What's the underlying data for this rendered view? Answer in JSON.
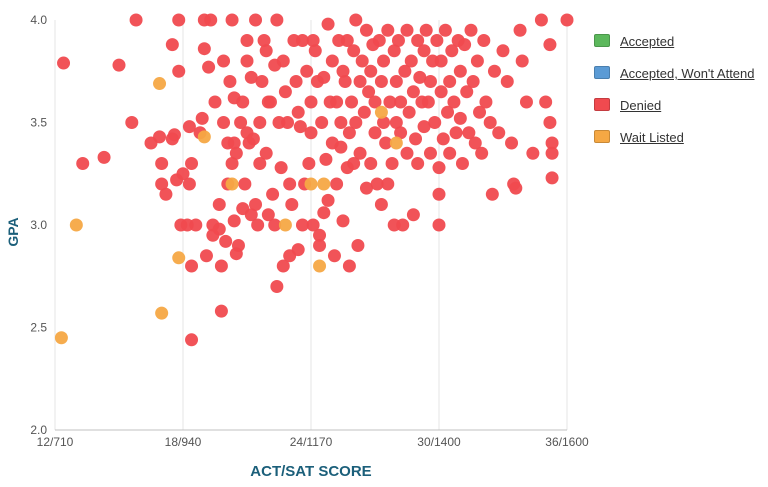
{
  "chart_data": {
    "type": "scatter",
    "title": "",
    "xlabel": "ACT/SAT SCORE",
    "ylabel": "GPA",
    "xlim": [
      12,
      36
    ],
    "ylim": [
      2.0,
      4.0
    ],
    "x_ticks": [
      {
        "value": 12,
        "label": "12/710"
      },
      {
        "value": 18,
        "label": "18/940"
      },
      {
        "value": 24,
        "label": "24/1170"
      },
      {
        "value": 30,
        "label": "30/1400"
      },
      {
        "value": 36,
        "label": "36/1600"
      }
    ],
    "y_ticks": [
      {
        "value": 2.0,
        "label": "2.0"
      },
      {
        "value": 2.5,
        "label": "2.5"
      },
      {
        "value": 3.0,
        "label": "3.0"
      },
      {
        "value": 3.5,
        "label": "3.5"
      },
      {
        "value": 4.0,
        "label": "4.0"
      }
    ],
    "grid": "vertical",
    "legend_position": "right",
    "series": [
      {
        "name": "Accepted",
        "color": "#5cb85c",
        "points": []
      },
      {
        "name": "Accepted, Won't Attend",
        "color": "#5b9bd5",
        "points": []
      },
      {
        "name": "Denied",
        "color": "#f04a4f",
        "points": [
          [
            12.4,
            3.79
          ],
          [
            13.3,
            3.3
          ],
          [
            14.3,
            3.33
          ],
          [
            15.0,
            3.78
          ],
          [
            15.6,
            3.5
          ],
          [
            15.8,
            4.0
          ],
          [
            16.5,
            3.4
          ],
          [
            16.9,
            3.43
          ],
          [
            17.0,
            3.3
          ],
          [
            17.0,
            3.2
          ],
          [
            17.2,
            3.15
          ],
          [
            17.5,
            3.42
          ],
          [
            17.5,
            3.88
          ],
          [
            17.6,
            3.44
          ],
          [
            17.7,
            3.22
          ],
          [
            17.8,
            4.0
          ],
          [
            17.8,
            3.75
          ],
          [
            17.9,
            3.0
          ],
          [
            18.0,
            3.25
          ],
          [
            18.2,
            3.0
          ],
          [
            18.3,
            3.48
          ],
          [
            18.4,
            3.3
          ],
          [
            18.3,
            3.2
          ],
          [
            18.4,
            2.8
          ],
          [
            18.4,
            2.44
          ],
          [
            18.6,
            3.0
          ],
          [
            18.8,
            3.45
          ],
          [
            18.9,
            3.52
          ],
          [
            19.0,
            3.86
          ],
          [
            19.0,
            4.0
          ],
          [
            19.2,
            3.77
          ],
          [
            19.1,
            2.85
          ],
          [
            19.3,
            4.0
          ],
          [
            19.4,
            3.0
          ],
          [
            19.4,
            2.95
          ],
          [
            19.5,
            3.6
          ],
          [
            19.7,
            3.1
          ],
          [
            19.7,
            2.98
          ],
          [
            19.8,
            2.8
          ],
          [
            19.8,
            2.58
          ],
          [
            19.9,
            3.5
          ],
          [
            19.9,
            3.8
          ],
          [
            20.0,
            2.92
          ],
          [
            20.1,
            3.2
          ],
          [
            20.1,
            3.4
          ],
          [
            20.2,
            3.7
          ],
          [
            20.3,
            4.0
          ],
          [
            20.4,
            3.62
          ],
          [
            20.3,
            3.3
          ],
          [
            20.4,
            3.4
          ],
          [
            20.4,
            3.02
          ],
          [
            20.5,
            3.35
          ],
          [
            20.5,
            2.86
          ],
          [
            20.6,
            2.9
          ],
          [
            20.7,
            3.5
          ],
          [
            20.8,
            3.6
          ],
          [
            20.8,
            3.08
          ],
          [
            20.9,
            3.2
          ],
          [
            21.0,
            3.9
          ],
          [
            21.0,
            3.8
          ],
          [
            21.0,
            3.45
          ],
          [
            21.1,
            3.4
          ],
          [
            21.2,
            3.72
          ],
          [
            21.2,
            3.05
          ],
          [
            21.3,
            3.42
          ],
          [
            21.4,
            4.0
          ],
          [
            21.4,
            3.1
          ],
          [
            21.5,
            3.0
          ],
          [
            21.6,
            3.5
          ],
          [
            21.6,
            3.3
          ],
          [
            21.7,
            3.7
          ],
          [
            21.8,
            3.9
          ],
          [
            21.9,
            3.85
          ],
          [
            21.9,
            3.35
          ],
          [
            22.0,
            3.6
          ],
          [
            22.0,
            3.05
          ],
          [
            22.1,
            3.6
          ],
          [
            22.2,
            3.15
          ],
          [
            22.3,
            3.78
          ],
          [
            22.3,
            3.0
          ],
          [
            22.4,
            4.0
          ],
          [
            22.4,
            2.7
          ],
          [
            22.5,
            3.5
          ],
          [
            22.6,
            3.28
          ],
          [
            22.7,
            3.8
          ],
          [
            22.7,
            2.8
          ],
          [
            22.8,
            3.65
          ],
          [
            22.9,
            3.5
          ],
          [
            23.0,
            2.85
          ],
          [
            23.0,
            3.2
          ],
          [
            23.1,
            3.1
          ],
          [
            23.2,
            3.9
          ],
          [
            23.3,
            3.7
          ],
          [
            23.4,
            3.55
          ],
          [
            23.4,
            2.88
          ],
          [
            23.5,
            3.48
          ],
          [
            23.6,
            3.9
          ],
          [
            23.6,
            3.0
          ],
          [
            23.7,
            3.2
          ],
          [
            23.8,
            3.75
          ],
          [
            23.9,
            3.3
          ],
          [
            24.0,
            3.6
          ],
          [
            24.0,
            3.45
          ],
          [
            24.1,
            3.9
          ],
          [
            24.1,
            3.0
          ],
          [
            24.2,
            3.85
          ],
          [
            24.3,
            3.7
          ],
          [
            24.4,
            2.95
          ],
          [
            24.4,
            2.9
          ],
          [
            24.5,
            3.5
          ],
          [
            24.6,
            3.72
          ],
          [
            24.6,
            3.06
          ],
          [
            24.7,
            3.32
          ],
          [
            24.8,
            3.98
          ],
          [
            24.8,
            3.12
          ],
          [
            24.9,
            3.6
          ],
          [
            25.0,
            3.8
          ],
          [
            25.0,
            3.4
          ],
          [
            25.1,
            2.85
          ],
          [
            25.2,
            3.2
          ],
          [
            25.2,
            3.6
          ],
          [
            25.3,
            3.9
          ],
          [
            25.4,
            3.5
          ],
          [
            25.4,
            3.38
          ],
          [
            25.5,
            3.75
          ],
          [
            25.5,
            3.02
          ],
          [
            25.6,
            3.7
          ],
          [
            25.7,
            3.9
          ],
          [
            25.7,
            3.28
          ],
          [
            25.8,
            3.45
          ],
          [
            25.8,
            2.8
          ],
          [
            25.9,
            3.6
          ],
          [
            26.0,
            3.85
          ],
          [
            26.0,
            3.3
          ],
          [
            26.1,
            4.0
          ],
          [
            26.1,
            3.5
          ],
          [
            26.2,
            2.9
          ],
          [
            26.3,
            3.7
          ],
          [
            26.3,
            3.35
          ],
          [
            26.4,
            3.8
          ],
          [
            26.5,
            3.55
          ],
          [
            26.6,
            3.95
          ],
          [
            26.6,
            3.18
          ],
          [
            26.7,
            3.65
          ],
          [
            26.8,
            3.75
          ],
          [
            26.8,
            3.3
          ],
          [
            26.9,
            3.88
          ],
          [
            27.0,
            3.45
          ],
          [
            27.0,
            3.6
          ],
          [
            27.1,
            3.2
          ],
          [
            27.2,
            3.9
          ],
          [
            27.3,
            3.7
          ],
          [
            27.3,
            3.1
          ],
          [
            27.4,
            3.5
          ],
          [
            27.4,
            3.8
          ],
          [
            27.5,
            3.4
          ],
          [
            27.6,
            3.95
          ],
          [
            27.6,
            3.2
          ],
          [
            27.7,
            3.6
          ],
          [
            27.8,
            3.3
          ],
          [
            27.9,
            3.85
          ],
          [
            27.9,
            3.0
          ],
          [
            28.0,
            3.7
          ],
          [
            28.0,
            3.5
          ],
          [
            28.1,
            3.9
          ],
          [
            28.2,
            3.45
          ],
          [
            28.2,
            3.6
          ],
          [
            28.3,
            3.0
          ],
          [
            28.4,
            3.75
          ],
          [
            28.5,
            3.35
          ],
          [
            28.5,
            3.95
          ],
          [
            28.6,
            3.55
          ],
          [
            28.7,
            3.8
          ],
          [
            28.8,
            3.65
          ],
          [
            28.8,
            3.05
          ],
          [
            28.9,
            3.42
          ],
          [
            29.0,
            3.9
          ],
          [
            29.0,
            3.3
          ],
          [
            29.1,
            3.72
          ],
          [
            29.2,
            3.6
          ],
          [
            29.3,
            3.48
          ],
          [
            29.3,
            3.85
          ],
          [
            29.4,
            3.95
          ],
          [
            29.5,
            3.6
          ],
          [
            29.6,
            3.7
          ],
          [
            29.6,
            3.35
          ],
          [
            29.7,
            3.8
          ],
          [
            29.8,
            3.5
          ],
          [
            29.9,
            3.9
          ],
          [
            30.0,
            3.0
          ],
          [
            30.0,
            3.15
          ],
          [
            30.0,
            3.28
          ],
          [
            30.1,
            3.65
          ],
          [
            30.1,
            3.8
          ],
          [
            30.2,
            3.42
          ],
          [
            30.3,
            3.95
          ],
          [
            30.4,
            3.55
          ],
          [
            30.5,
            3.7
          ],
          [
            30.5,
            3.35
          ],
          [
            30.6,
            3.85
          ],
          [
            30.7,
            3.6
          ],
          [
            30.8,
            3.45
          ],
          [
            30.9,
            3.9
          ],
          [
            31.0,
            3.75
          ],
          [
            31.0,
            3.52
          ],
          [
            31.1,
            3.3
          ],
          [
            31.2,
            3.88
          ],
          [
            31.3,
            3.65
          ],
          [
            31.4,
            3.45
          ],
          [
            31.5,
            3.95
          ],
          [
            31.6,
            3.7
          ],
          [
            31.7,
            3.4
          ],
          [
            31.8,
            3.8
          ],
          [
            31.9,
            3.55
          ],
          [
            32.0,
            3.35
          ],
          [
            32.1,
            3.9
          ],
          [
            32.2,
            3.6
          ],
          [
            32.4,
            3.5
          ],
          [
            32.5,
            3.15
          ],
          [
            32.6,
            3.75
          ],
          [
            32.8,
            3.45
          ],
          [
            33.0,
            3.85
          ],
          [
            33.2,
            3.7
          ],
          [
            33.4,
            3.4
          ],
          [
            33.5,
            3.2
          ],
          [
            33.6,
            3.18
          ],
          [
            33.8,
            3.95
          ],
          [
            33.9,
            3.8
          ],
          [
            34.1,
            3.6
          ],
          [
            34.4,
            3.35
          ],
          [
            34.8,
            4.0
          ],
          [
            35.0,
            3.6
          ],
          [
            35.2,
            3.88
          ],
          [
            35.2,
            3.5
          ],
          [
            35.3,
            3.4
          ],
          [
            35.3,
            3.35
          ],
          [
            35.3,
            3.23
          ],
          [
            36.0,
            4.0
          ]
        ]
      },
      {
        "name": "Wait Listed",
        "color": "#f5a844",
        "points": [
          [
            12.3,
            2.45
          ],
          [
            13.0,
            3.0
          ],
          [
            16.9,
            3.69
          ],
          [
            17.0,
            2.57
          ],
          [
            17.8,
            2.84
          ],
          [
            19.0,
            3.43
          ],
          [
            20.3,
            3.2
          ],
          [
            22.8,
            3.0
          ],
          [
            24.0,
            3.2
          ],
          [
            24.4,
            2.8
          ],
          [
            24.6,
            3.2
          ],
          [
            27.3,
            3.55
          ],
          [
            28.0,
            3.4
          ]
        ]
      }
    ]
  }
}
